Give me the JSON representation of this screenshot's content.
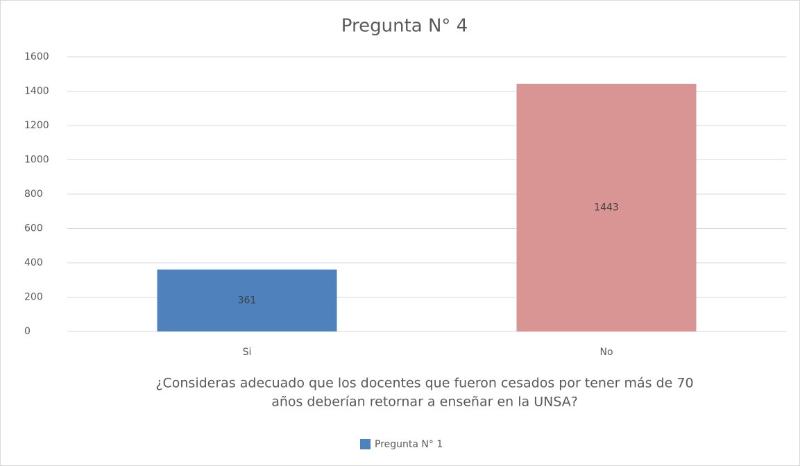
{
  "chart_data": {
    "type": "bar",
    "title": "Pregunta N° 4",
    "categories": [
      "Si",
      "No"
    ],
    "series": [
      {
        "name": "Pregunta N° 1",
        "color": "#4f81bd",
        "point_colors": [
          "#4f81bd",
          "#d99594"
        ],
        "values": [
          361,
          1443
        ]
      }
    ],
    "xlabel": [
      "¿Consideras adecuado que los docentes que fueron cesados por tener más de 70",
      "años deberían retornar a enseñar en la UNSA?"
    ],
    "ylim": [
      0,
      1600
    ],
    "yticks": [
      0,
      200,
      400,
      600,
      800,
      1000,
      1200,
      1400,
      1600
    ],
    "grid": true,
    "legend": "bottom",
    "data_labels": true
  }
}
